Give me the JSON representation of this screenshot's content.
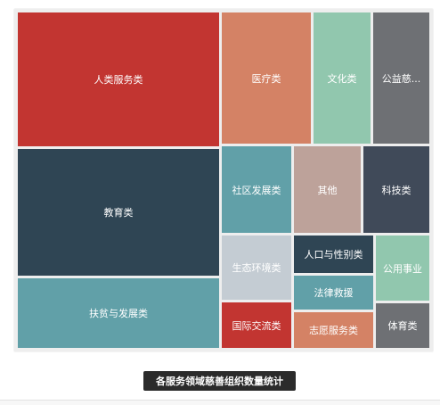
{
  "chart_data": {
    "type": "treemap",
    "title": "各服务领域慈善组织数量统计",
    "items": [
      {
        "name": "人类服务类",
        "label": "人类服务类",
        "value": 3000,
        "color": "#c23531"
      },
      {
        "name": "教育类",
        "label": "教育类",
        "value": 2700,
        "color": "#2f4554"
      },
      {
        "name": "扶贫与发展类",
        "label": "扶贫与发展类",
        "value": 1540,
        "color": "#61a0a8"
      },
      {
        "name": "医疗类",
        "label": "医疗类",
        "value": 950,
        "color": "#d48265"
      },
      {
        "name": "文化类",
        "label": "文化类",
        "value": 640,
        "color": "#91c7ae"
      },
      {
        "name": "公益慈善",
        "label": "公益慈...",
        "value": 540,
        "color": "#6e7074"
      },
      {
        "name": "社区发展类",
        "label": "社区发展类",
        "value": 580,
        "color": "#61a0a8"
      },
      {
        "name": "其他",
        "label": "其他",
        "value": 560,
        "color": "#bda29a"
      },
      {
        "name": "科技类",
        "label": "科技类",
        "value": 490,
        "color": "#404a59"
      },
      {
        "name": "生态环境类",
        "label": "生态环境类",
        "value": 490,
        "color": "#c4ccd3"
      },
      {
        "name": "国际交流类",
        "label": "国际交流类",
        "value": 400,
        "color": "#c23531"
      },
      {
        "name": "人口与性别类",
        "label": "人口与性别类",
        "value": 300,
        "color": "#2f4554"
      },
      {
        "name": "法律救援",
        "label": "法律救援",
        "value": 290,
        "color": "#61a0a8"
      },
      {
        "name": "志愿服务类",
        "label": "志愿服务类",
        "value": 270,
        "color": "#d48265"
      },
      {
        "name": "公用事业",
        "label": "公用事业",
        "value": 230,
        "color": "#91c7ae"
      },
      {
        "name": "体育类",
        "label": "体育类",
        "value": 150,
        "color": "#6e7074"
      }
    ]
  }
}
